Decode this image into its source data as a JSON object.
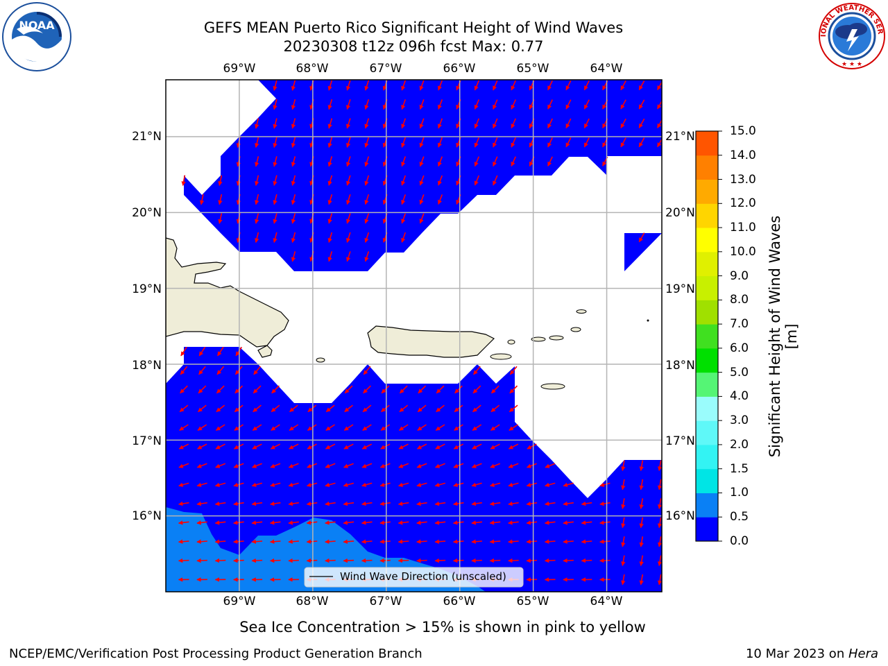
{
  "header": {
    "title_line1": "GEFS MEAN Puerto Rico Significant Height of Wind Waves",
    "title_line2": "20230308 t12z 096h fcst   Max: 0.77"
  },
  "logos": {
    "left": {
      "text": "NOAA",
      "ring_text": "NATIONAL OCEANIC AND ATMOSPHERIC ADMINISTRATION · U.S. DEPARTMENT OF COMMERCE",
      "icon": "noaa-logo-icon"
    },
    "right": {
      "text": "NATIONAL WEATHER SERVICE",
      "icon": "nws-logo-icon"
    }
  },
  "map": {
    "lon_labels": [
      "69°W",
      "68°W",
      "67°W",
      "66°W",
      "65°W",
      "64°W"
    ],
    "lat_labels": [
      "21°N",
      "20°N",
      "19°N",
      "18°N",
      "17°N",
      "16°N"
    ],
    "lon_range": [
      -70,
      -63.25
    ],
    "lat_range": [
      15,
      21.75
    ],
    "grid": true,
    "legend": {
      "label": "Wind Wave Direction (unscaled)",
      "placement": "bottom-center"
    },
    "colors": {
      "water_low": "#0000ff",
      "water_mid": "#0a80f5",
      "land": "#efedd8",
      "arrow": "#ff0000",
      "grid": "#b4b4b4"
    }
  },
  "colorbar": {
    "label": "Significant Height of Wind Waves [m]",
    "ticks": [
      "0.0",
      "0.5",
      "1.0",
      "1.5",
      "2.0",
      "3.0",
      "4.0",
      "5.0",
      "6.0",
      "7.0",
      "8.0",
      "9.0",
      "10.0",
      "11.0",
      "12.0",
      "13.0",
      "14.0",
      "15.0"
    ],
    "colors": [
      "#0000ff",
      "#0a80f5",
      "#00e5e5",
      "#33f3f3",
      "#5ff8f8",
      "#9afcfc",
      "#55f575",
      "#00e000",
      "#40e020",
      "#a0e000",
      "#c8f000",
      "#e0f000",
      "#ffff00",
      "#ffd500",
      "#ffaa00",
      "#ff8000",
      "#ff5500",
      "#ff2a00",
      "#ff0000"
    ]
  },
  "notes": {
    "sea_ice": "Sea Ice Concentration > 15% is shown in pink to yellow"
  },
  "footer": {
    "left": "NCEP/EMC/Verification Post Processing Product Generation Branch",
    "right_date": "10 Mar 2023 on ",
    "right_machine": "Hera"
  }
}
